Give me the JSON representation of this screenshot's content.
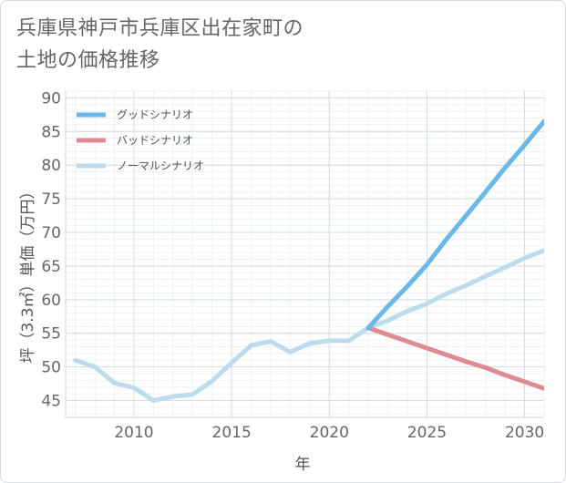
{
  "title_lines": [
    "兵庫県神戸市兵庫区出在家町の",
    "土地の価格推移"
  ],
  "chart_data": {
    "type": "line",
    "xlabel": "年",
    "ylabel": "坪（3.3㎡）単価（万円）",
    "xlim": [
      2006.5,
      2031
    ],
    "ylim": [
      42.5,
      91
    ],
    "x_ticks": [
      2010,
      2015,
      2020,
      2025,
      2030
    ],
    "y_ticks": [
      45,
      50,
      55,
      60,
      65,
      70,
      75,
      80,
      85,
      90
    ],
    "grid": true,
    "legend_position": "top-left",
    "series": [
      {
        "name": "グッドシナリオ",
        "color": "#6bb7e8",
        "x": [
          2022,
          2023,
          2024,
          2025,
          2026,
          2027,
          2028,
          2029,
          2030,
          2031
        ],
        "y": [
          55.8,
          59.0,
          62.0,
          65.2,
          69.0,
          72.5,
          76.0,
          79.6,
          83.0,
          86.5
        ]
      },
      {
        "name": "バッドシナリオ",
        "color": "#de8b93",
        "x": [
          2022,
          2023,
          2024,
          2025,
          2026,
          2027,
          2028,
          2029,
          2030,
          2031
        ],
        "y": [
          55.8,
          54.8,
          53.8,
          52.8,
          51.8,
          50.8,
          49.9,
          48.8,
          47.8,
          46.8
        ]
      },
      {
        "name": "ノーマルシナリオ",
        "color": "#bcdcec",
        "x": [
          2007,
          2008,
          2009,
          2010,
          2011,
          2012,
          2013,
          2014,
          2015,
          2016,
          2017,
          2018,
          2019,
          2020,
          2021,
          2022,
          2023,
          2024,
          2025,
          2026,
          2027,
          2028,
          2029,
          2030,
          2031
        ],
        "y": [
          51.0,
          50.0,
          47.6,
          46.9,
          45.0,
          45.6,
          45.9,
          47.9,
          50.6,
          53.2,
          53.8,
          52.2,
          53.5,
          53.9,
          53.9,
          55.8,
          56.9,
          58.3,
          59.4,
          60.9,
          62.1,
          63.5,
          64.8,
          66.2,
          67.3
        ]
      }
    ]
  }
}
